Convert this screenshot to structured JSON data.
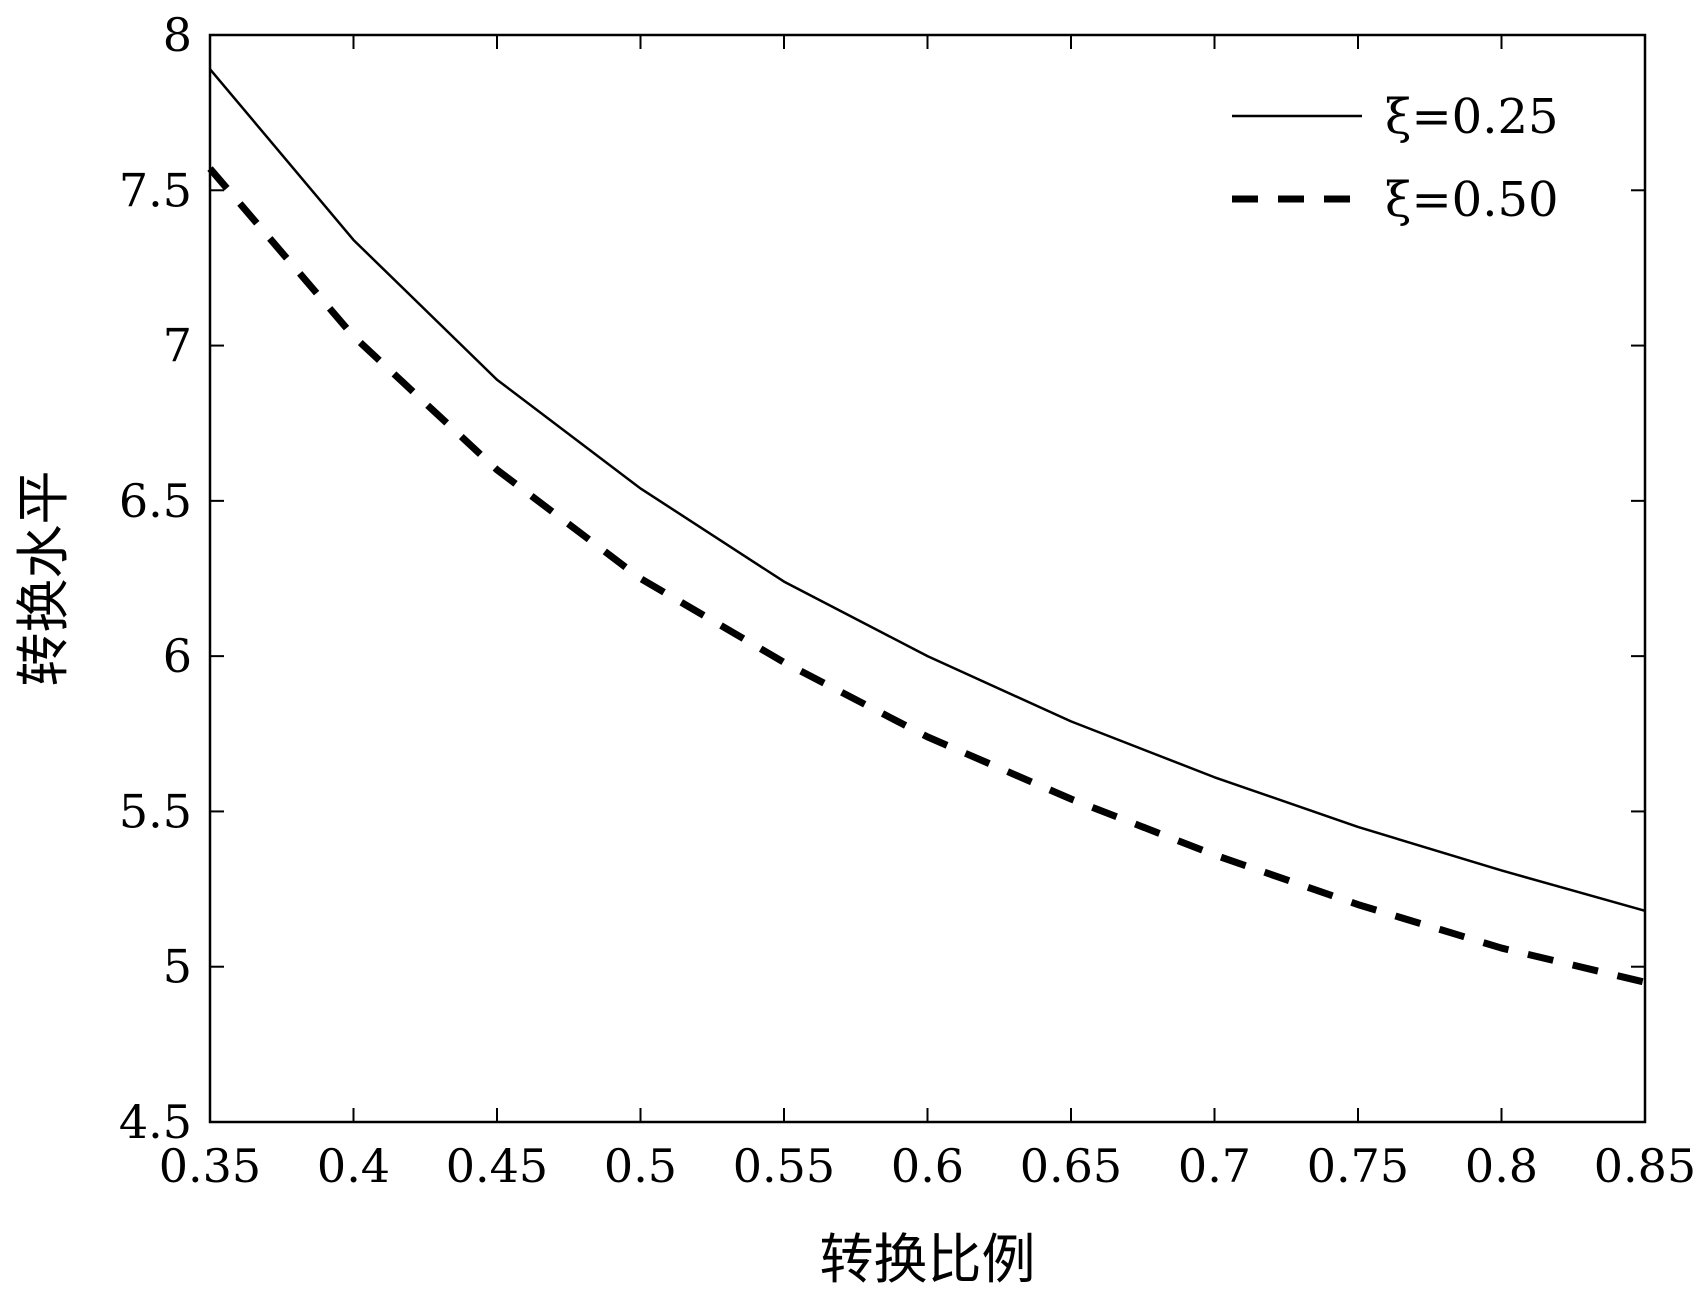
{
  "chart_data": {
    "type": "line",
    "title": "",
    "xlabel": "转换比例",
    "ylabel": "转换水平",
    "xlim": [
      0.35,
      0.85
    ],
    "ylim": [
      4.5,
      8
    ],
    "x_ticks": [
      "0.35",
      "0.4",
      "0.45",
      "0.5",
      "0.55",
      "0.6",
      "0.65",
      "0.7",
      "0.75",
      "0.8",
      "0.85"
    ],
    "y_ticks": [
      "4.5",
      "5",
      "5.5",
      "6",
      "6.5",
      "7",
      "7.5",
      "8"
    ],
    "grid": false,
    "legend_position": "top-right",
    "x": [
      0.35,
      0.4,
      0.45,
      0.5,
      0.55,
      0.6,
      0.65,
      0.7,
      0.75,
      0.8,
      0.85
    ],
    "series": [
      {
        "name": "ξ=0.25",
        "style": "solid",
        "color": "#000000",
        "values": [
          7.89,
          7.34,
          6.89,
          6.54,
          6.24,
          6.0,
          5.79,
          5.61,
          5.45,
          5.31,
          5.18
        ]
      },
      {
        "name": "ξ=0.50",
        "style": "dashed",
        "color": "#000000",
        "values": [
          7.57,
          7.03,
          6.6,
          6.25,
          5.98,
          5.74,
          5.54,
          5.36,
          5.2,
          5.06,
          4.95
        ]
      }
    ]
  }
}
